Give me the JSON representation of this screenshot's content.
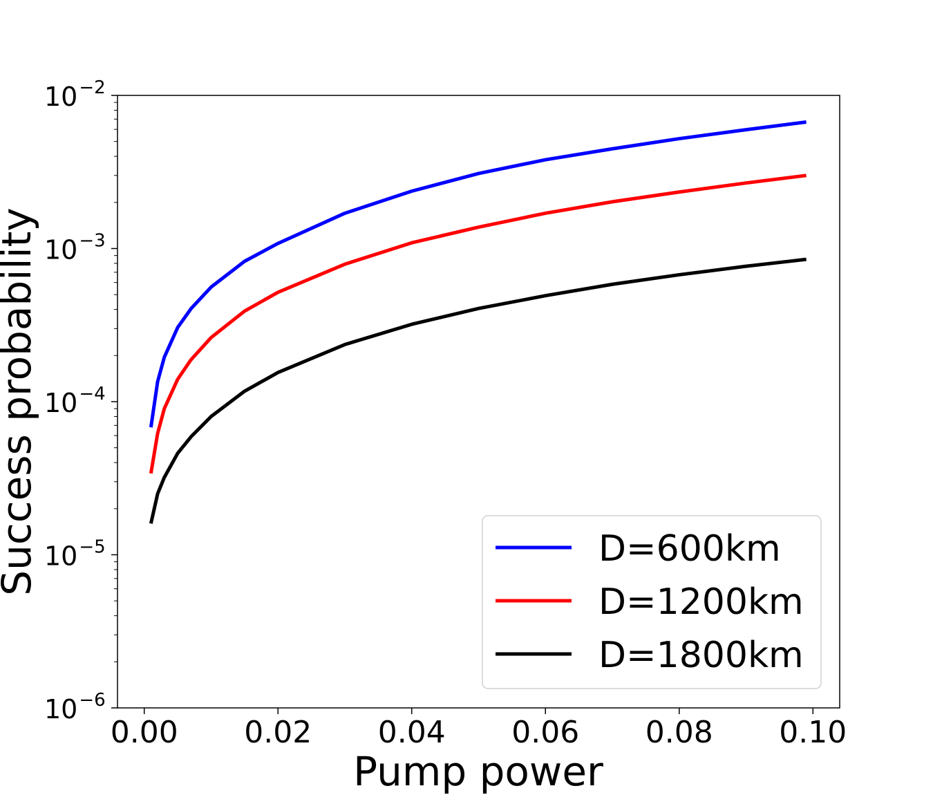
{
  "chart_data": {
    "type": "line",
    "title": "",
    "xlabel": "Pump power",
    "ylabel": "Success probability",
    "xlim": [
      -0.004,
      0.104
    ],
    "ylim_log10": [
      -6,
      -2
    ],
    "yscale": "log",
    "x_ticks": [
      {
        "value": 0.0,
        "label": "0.00"
      },
      {
        "value": 0.02,
        "label": "0.02"
      },
      {
        "value": 0.04,
        "label": "0.04"
      },
      {
        "value": 0.06,
        "label": "0.06"
      },
      {
        "value": 0.08,
        "label": "0.08"
      },
      {
        "value": 0.1,
        "label": "0.10"
      }
    ],
    "y_ticks": [
      {
        "exp": -2,
        "base": "10",
        "exponent": "−2"
      },
      {
        "exp": -3,
        "base": "10",
        "exponent": "−3"
      },
      {
        "exp": -4,
        "base": "10",
        "exponent": "−4"
      },
      {
        "exp": -5,
        "base": "10",
        "exponent": "−5"
      },
      {
        "exp": -6,
        "base": "10",
        "exponent": "−6"
      }
    ],
    "x": [
      0.001,
      0.002,
      0.003,
      0.005,
      0.007,
      0.01,
      0.015,
      0.02,
      0.03,
      0.04,
      0.05,
      0.06,
      0.07,
      0.08,
      0.09,
      0.099
    ],
    "series": [
      {
        "name": "D=600km",
        "color": "#0000ff",
        "values": [
          6.8e-05,
          0.000135,
          0.000195,
          0.000305,
          0.000405,
          0.00056,
          0.000825,
          0.00108,
          0.0017,
          0.00237,
          0.00309,
          0.0038,
          0.00448,
          0.00522,
          0.00597,
          0.0067
        ]
      },
      {
        "name": "D=1200km",
        "color": "#ff0000",
        "values": [
          3.4e-05,
          6.2e-05,
          9e-05,
          0.00014,
          0.000188,
          0.000262,
          0.00039,
          0.000518,
          0.00079,
          0.00109,
          0.00138,
          0.0017,
          0.00202,
          0.00234,
          0.00268,
          0.003
        ]
      },
      {
        "name": "D=1800km",
        "color": "#000000",
        "values": [
          1.6e-05,
          2.5e-05,
          3.2e-05,
          4.6e-05,
          5.9e-05,
          8e-05,
          0.000117,
          0.000155,
          0.000236,
          0.00032,
          0.000406,
          0.000492,
          0.000584,
          0.000674,
          0.000766,
          0.00085
        ]
      }
    ],
    "legend_position": "lower-right"
  }
}
